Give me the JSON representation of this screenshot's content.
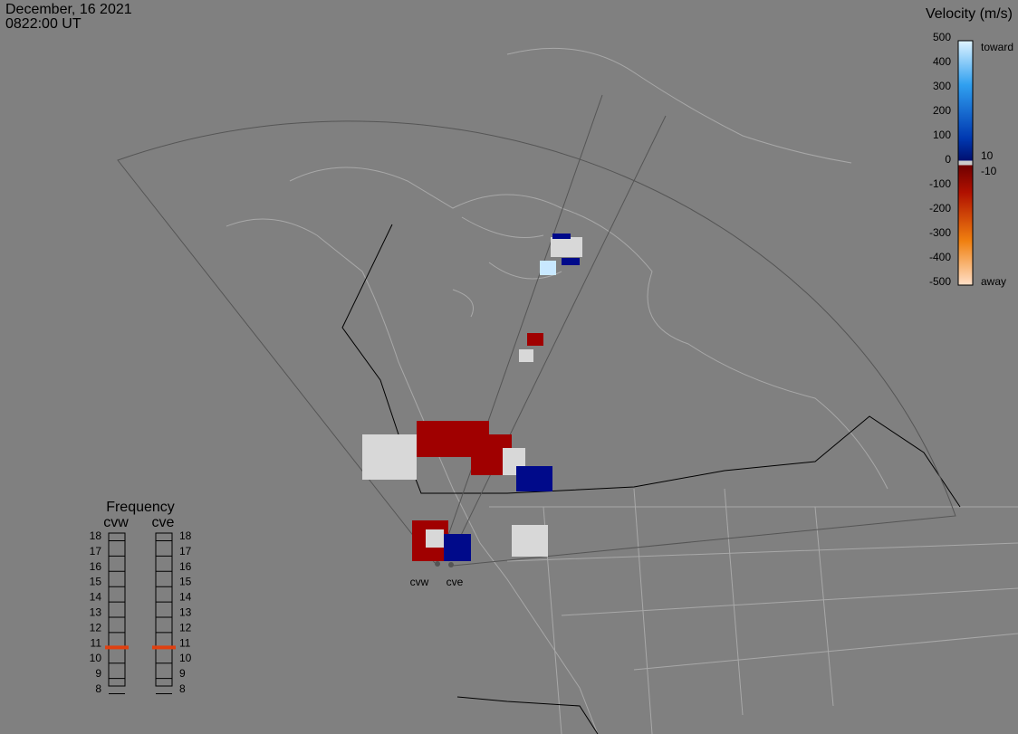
{
  "header": {
    "date": "December, 16 2021",
    "time": "0822:00 UT"
  },
  "velocity_scale": {
    "title": "Velocity (m/s)",
    "ticks": [
      500,
      400,
      300,
      200,
      100,
      0,
      -100,
      -200,
      -300,
      -400,
      -500
    ],
    "top_label": "toward",
    "bottom_label": "away",
    "upper_threshold": "10",
    "lower_threshold": "-10"
  },
  "frequency": {
    "title": "Frequency",
    "ticks": [
      8,
      9,
      10,
      11,
      12,
      13,
      14,
      15,
      16,
      17,
      18
    ],
    "radars": [
      {
        "name": "cvw",
        "value": 10.7
      },
      {
        "name": "cve",
        "value": 10.7
      }
    ]
  },
  "stations": [
    "cvw",
    "cve"
  ]
}
